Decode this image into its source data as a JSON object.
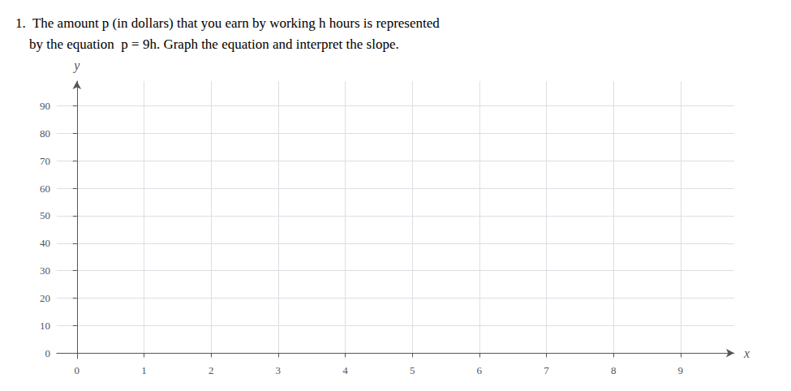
{
  "chart_data": {
    "type": "line",
    "title": "1.  The amount p (in dollars) that you earn by working h hours is represented\n    by the equation  p = 9h. Graph the equation and interpret the slope.",
    "xlabel": "x",
    "ylabel": "y",
    "xlim": [
      -0.3,
      9.8
    ],
    "ylim": [
      -2,
      99
    ],
    "xticks": [
      0,
      1,
      2,
      3,
      4,
      5,
      6,
      7,
      8,
      9
    ],
    "yticks": [
      0,
      10,
      20,
      30,
      40,
      50,
      60,
      70,
      80,
      90
    ],
    "grid": true
  }
}
